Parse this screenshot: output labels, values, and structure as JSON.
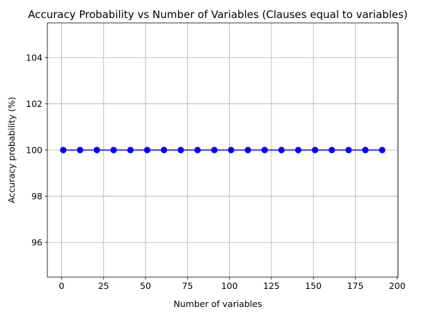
{
  "chart_data": {
    "type": "line",
    "title": "Accuracy Probability vs Number of Variables (Clauses equal to variables)",
    "xlabel": "Number of variables",
    "ylabel": "Accuracy probability (%)",
    "xlim": [
      -8.5,
      200.5
    ],
    "ylim": [
      94.5,
      105.5
    ],
    "xticks": [
      0,
      25,
      50,
      75,
      100,
      125,
      150,
      175,
      200
    ],
    "yticks": [
      96,
      98,
      100,
      102,
      104
    ],
    "grid": true,
    "legend": "none",
    "series": [
      {
        "color": "#0000ff",
        "marker": "circle",
        "x": [
          1,
          11,
          21,
          31,
          41,
          51,
          61,
          71,
          81,
          91,
          101,
          111,
          121,
          131,
          141,
          151,
          161,
          171,
          181,
          191
        ],
        "y": [
          100,
          100,
          100,
          100,
          100,
          100,
          100,
          100,
          100,
          100,
          100,
          100,
          100,
          100,
          100,
          100,
          100,
          100,
          100,
          100
        ]
      }
    ]
  }
}
